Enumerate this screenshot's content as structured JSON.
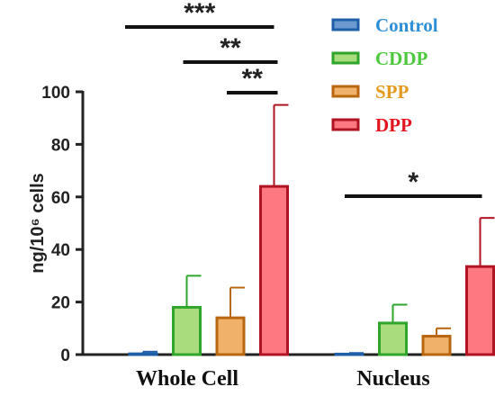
{
  "chart_data": {
    "type": "bar",
    "categories": [
      "Whole Cell",
      "Nucleus"
    ],
    "series": [
      {
        "name": "Control",
        "values": [
          0.3,
          0.2
        ],
        "errors": [
          0.8,
          0.4
        ],
        "fill": "#6a9ad0",
        "stroke": "#1f5fa8",
        "text_color": "#2f8fd6"
      },
      {
        "name": "CDDP",
        "values": [
          18,
          12
        ],
        "errors": [
          12,
          7
        ],
        "fill": "#a8dc7c",
        "stroke": "#2fa52b",
        "text_color": "#4cc83c"
      },
      {
        "name": "SPP",
        "values": [
          14,
          7
        ],
        "errors": [
          11.5,
          3
        ],
        "fill": "#f0b26a",
        "stroke": "#b8660f",
        "text_color": "#e39a1f"
      },
      {
        "name": "DPP",
        "values": [
          64,
          33.5
        ],
        "errors": [
          31,
          18.5
        ],
        "fill": "#fd7880",
        "stroke": "#b01422",
        "text_color": "#e2141e"
      }
    ],
    "ylabel": "ng/10⁶ cells",
    "ylim": [
      0,
      100
    ],
    "yticks": [
      0,
      20,
      40,
      60,
      80,
      100
    ],
    "legend_position": "top-right",
    "significance": [
      {
        "category": "Whole Cell",
        "from": "Control",
        "to": "DPP",
        "label": "***"
      },
      {
        "category": "Whole Cell",
        "from": "CDDP",
        "to": "DPP",
        "label": "**"
      },
      {
        "category": "Whole Cell",
        "from": "SPP",
        "to": "DPP",
        "label": "**"
      },
      {
        "category": "Nucleus",
        "from": "Control",
        "to": "DPP",
        "label": "*"
      }
    ]
  }
}
